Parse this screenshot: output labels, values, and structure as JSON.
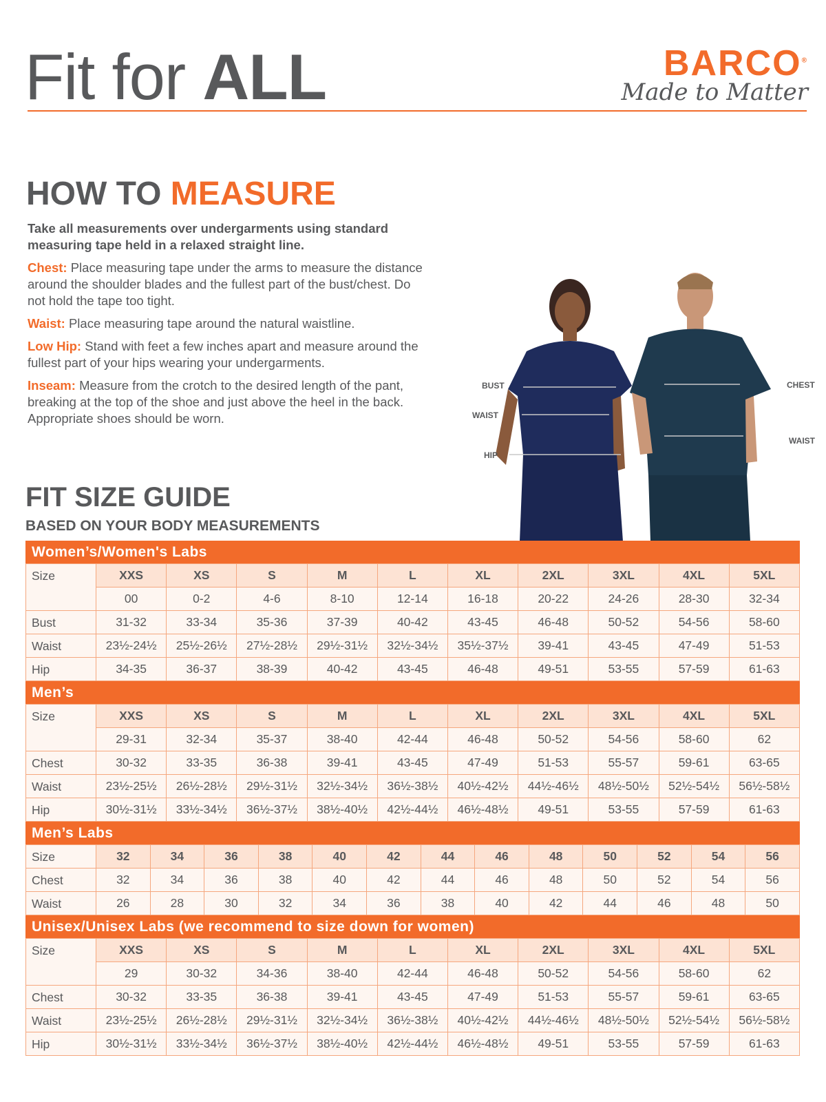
{
  "header": {
    "title_light": "Fit for ",
    "title_bold": "ALL",
    "brand": "BARCO",
    "tagline": "Made to Matter"
  },
  "measure": {
    "heading_a": "HOW TO ",
    "heading_b": "MEASURE",
    "lead": "Take all measurements over undergarments using standard measuring tape held in a relaxed straight line.",
    "items": [
      {
        "key": "Chest:",
        "text": "Place measuring tape under the arms to measure the distance around the shoulder blades and the fullest part of the bust/chest. Do not hold the tape too tight."
      },
      {
        "key": "Waist:",
        "text": "Place measuring tape around the natural waistline."
      },
      {
        "key": "Low Hip:",
        "text": "Stand with feet a few inches apart and measure around the fullest part of your hips wearing your undergarments."
      },
      {
        "key": "Inseam:",
        "text": "Measure from the crotch to the desired length of the pant, breaking at the top of the shoe and just above the heel in the back. Appropriate shoes should be worn."
      }
    ],
    "figure_labels": {
      "bust": "BUST",
      "waist_w": "WAIST",
      "hip": "HIP",
      "chest": "CHEST",
      "waist_m": "WAIST"
    }
  },
  "guide": {
    "title": "FIT SIZE GUIDE",
    "subtitle": "BASED ON YOUR BODY MEASUREMENTS",
    "sections": [
      {
        "title": "Women’s/Women's Labs",
        "rows": [
          {
            "label": "Size",
            "cells": [
              "XXS",
              "XS",
              "S",
              "M",
              "L",
              "XL",
              "2XL",
              "3XL",
              "4XL",
              "5XL"
            ]
          },
          {
            "label": "",
            "cells": [
              "00",
              "0-2",
              "4-6",
              "8-10",
              "12-14",
              "16-18",
              "20-22",
              "24-26",
              "28-30",
              "32-34"
            ]
          },
          {
            "label": "Bust",
            "cells": [
              "31-32",
              "33-34",
              "35-36",
              "37-39",
              "40-42",
              "43-45",
              "46-48",
              "50-52",
              "54-56",
              "58-60"
            ]
          },
          {
            "label": "Waist",
            "cells": [
              "23½-24½",
              "25½-26½",
              "27½-28½",
              "29½-31½",
              "32½-34½",
              "35½-37½",
              "39-41",
              "43-45",
              "47-49",
              "51-53"
            ]
          },
          {
            "label": "Hip",
            "cells": [
              "34-35",
              "36-37",
              "38-39",
              "40-42",
              "43-45",
              "46-48",
              "49-51",
              "53-55",
              "57-59",
              "61-63"
            ]
          }
        ]
      },
      {
        "title": "Men’s",
        "rows": [
          {
            "label": "Size",
            "cells": [
              "XXS",
              "XS",
              "S",
              "M",
              "L",
              "XL",
              "2XL",
              "3XL",
              "4XL",
              "5XL"
            ]
          },
          {
            "label": "",
            "cells": [
              "29-31",
              "32-34",
              "35-37",
              "38-40",
              "42-44",
              "46-48",
              "50-52",
              "54-56",
              "58-60",
              "62"
            ]
          },
          {
            "label": "Chest",
            "cells": [
              "30-32",
              "33-35",
              "36-38",
              "39-41",
              "43-45",
              "47-49",
              "51-53",
              "55-57",
              "59-61",
              "63-65"
            ]
          },
          {
            "label": "Waist",
            "cells": [
              "23½-25½",
              "26½-28½",
              "29½-31½",
              "32½-34½",
              "36½-38½",
              "40½-42½",
              "44½-46½",
              "48½-50½",
              "52½-54½",
              "56½-58½"
            ]
          },
          {
            "label": "Hip",
            "cells": [
              "30½-31½",
              "33½-34½",
              "36½-37½",
              "38½-40½",
              "42½-44½",
              "46½-48½",
              "49-51",
              "53-55",
              "57-59",
              "61-63"
            ]
          }
        ]
      },
      {
        "title": "Men’s Labs",
        "rows": [
          {
            "label": "Size",
            "cells": [
              "32",
              "34",
              "36",
              "38",
              "40",
              "42",
              "44",
              "46",
              "48",
              "50",
              "52",
              "54",
              "56"
            ]
          },
          {
            "label": "Chest",
            "cells": [
              "32",
              "34",
              "36",
              "38",
              "40",
              "42",
              "44",
              "46",
              "48",
              "50",
              "52",
              "54",
              "56"
            ]
          },
          {
            "label": "Waist",
            "cells": [
              "26",
              "28",
              "30",
              "32",
              "34",
              "36",
              "38",
              "40",
              "42",
              "44",
              "46",
              "48",
              "50"
            ]
          }
        ]
      },
      {
        "title": "Unisex/Unisex Labs (we recommend to size down for women)",
        "rows": [
          {
            "label": "Size",
            "cells": [
              "XXS",
              "XS",
              "S",
              "M",
              "L",
              "XL",
              "2XL",
              "3XL",
              "4XL",
              "5XL"
            ]
          },
          {
            "label": "",
            "cells": [
              "29",
              "30-32",
              "34-36",
              "38-40",
              "42-44",
              "46-48",
              "50-52",
              "54-56",
              "58-60",
              "62"
            ]
          },
          {
            "label": "Chest",
            "cells": [
              "30-32",
              "33-35",
              "36-38",
              "39-41",
              "43-45",
              "47-49",
              "51-53",
              "55-57",
              "59-61",
              "63-65"
            ]
          },
          {
            "label": "Waist",
            "cells": [
              "23½-25½",
              "26½-28½",
              "29½-31½",
              "32½-34½",
              "36½-38½",
              "40½-42½",
              "44½-46½",
              "48½-50½",
              "52½-54½",
              "56½-58½"
            ]
          },
          {
            "label": "Hip",
            "cells": [
              "30½-31½",
              "33½-34½",
              "36½-37½",
              "38½-40½",
              "42½-44½",
              "46½-48½",
              "49-51",
              "53-55",
              "57-59",
              "61-63"
            ]
          }
        ]
      }
    ]
  },
  "colors": {
    "accent": "#f26b2a",
    "text": "#58595b",
    "size_cell": "#fde3d4",
    "cell": "#fef6f1"
  }
}
